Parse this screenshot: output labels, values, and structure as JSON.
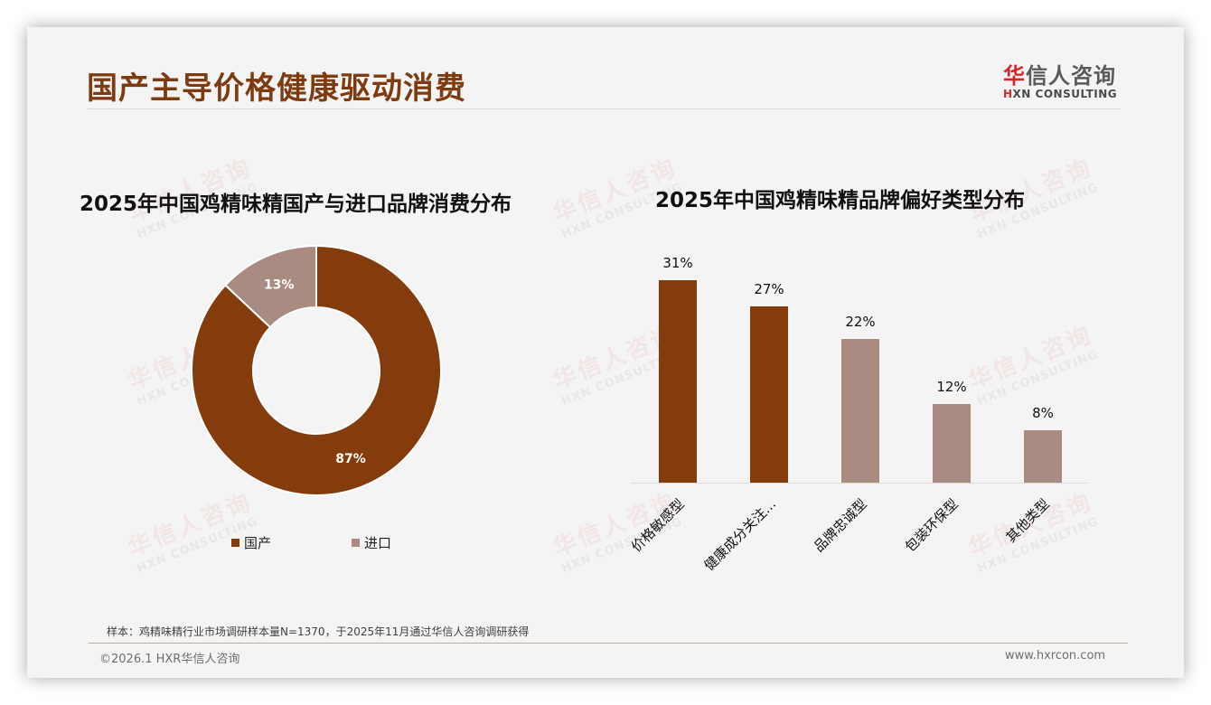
{
  "header": {
    "title": "国产主导价格健康驱动消费",
    "logo_cn_first": "华",
    "logo_cn_rest": "信人咨询",
    "logo_en_first": "H",
    "logo_en_rest": "XN CONSULTING"
  },
  "watermark": {
    "cn": "华信人咨询",
    "en": "HXN CONSULTING"
  },
  "colors": {
    "title": "#7f3b10",
    "primary": "#843c0c",
    "secondary": "#a98b82",
    "background": "#f4f4f4"
  },
  "chart_data": [
    {
      "type": "pie",
      "variant": "donut",
      "title": "2025年中国鸡精味精国产与进口品牌消费分布",
      "categories": [
        "国产",
        "进口"
      ],
      "values": [
        87,
        13
      ],
      "value_labels": [
        "87%",
        "13%"
      ],
      "colors": [
        "#843c0c",
        "#a98b82"
      ],
      "legend_position": "bottom"
    },
    {
      "type": "bar",
      "title": "2025年中国鸡精味精品牌偏好类型分布",
      "categories": [
        "价格敏感型",
        "健康成分关注...",
        "品牌忠诚型",
        "包装环保型",
        "其他类型"
      ],
      "values": [
        31,
        27,
        22,
        12,
        8
      ],
      "value_labels": [
        "31%",
        "27%",
        "22%",
        "12%",
        "8%"
      ],
      "colors": [
        "#843c0c",
        "#843c0c",
        "#a98b82",
        "#a98b82",
        "#a98b82"
      ],
      "xlabel": "",
      "ylabel": "",
      "ylim": [
        0,
        35
      ],
      "grid": false,
      "x_tick_rotation": -45
    }
  ],
  "footer": {
    "note": "样本：鸡精味精行业市场调研样本量N=1370，于2025年11月通过华信人咨询调研获得",
    "copyright": "©2026.1 HXR华信人咨询",
    "website": "www.hxrcon.com"
  }
}
